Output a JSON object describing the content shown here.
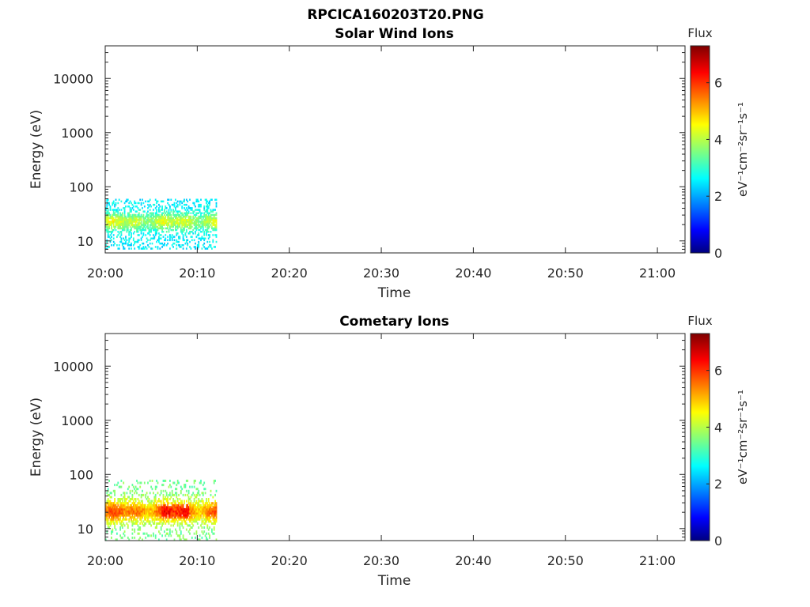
{
  "figure": {
    "title": "RPCICA160203T20.PNG"
  },
  "chart_data": [
    {
      "type": "heatmap",
      "title": "Solar Wind Ions",
      "xlabel": "Time",
      "ylabel": "Energy (eV)",
      "y_scale": "log",
      "x_ticks": [
        "20:00",
        "20:10",
        "20:20",
        "20:30",
        "20:40",
        "20:50",
        "21:00"
      ],
      "y_ticks": [
        "10",
        "100",
        "1000",
        "10000"
      ],
      "xlim": [
        "20:00",
        "21:03"
      ],
      "ylim": [
        6,
        40000
      ],
      "colorbar": {
        "label_top": "Flux",
        "units": "eV⁻¹cm⁻²sr⁻¹s⁻¹",
        "ticks": [
          "0",
          "2",
          "4",
          "6"
        ],
        "range": [
          0,
          7.3
        ],
        "colormap": "jet"
      },
      "data": {
        "time_range": [
          "20:00",
          "20:12"
        ],
        "energy_range_ev": [
          7,
          60
        ],
        "peak_energy_ev": 22,
        "typical_flux": [
          2.5,
          4.5
        ],
        "max_flux": 5.0
      }
    },
    {
      "type": "heatmap",
      "title": "Cometary Ions",
      "xlabel": "Time",
      "ylabel": "Energy (eV)",
      "y_scale": "log",
      "x_ticks": [
        "20:00",
        "20:10",
        "20:20",
        "20:30",
        "20:40",
        "20:50",
        "21:00"
      ],
      "y_ticks": [
        "10",
        "100",
        "1000",
        "10000"
      ],
      "xlim": [
        "20:00",
        "21:03"
      ],
      "ylim": [
        6,
        40000
      ],
      "colorbar": {
        "label_top": "Flux",
        "units": "eV⁻¹cm⁻²sr⁻¹s⁻¹",
        "ticks": [
          "0",
          "2",
          "4",
          "6"
        ],
        "range": [
          0,
          7.3
        ],
        "colormap": "jet"
      },
      "data": {
        "time_range": [
          "20:00",
          "20:12"
        ],
        "energy_range_ev": [
          6,
          80
        ],
        "peak_energy_ev": 20,
        "typical_flux": [
          3.5,
          6.0
        ],
        "max_flux": 7.0
      }
    }
  ]
}
